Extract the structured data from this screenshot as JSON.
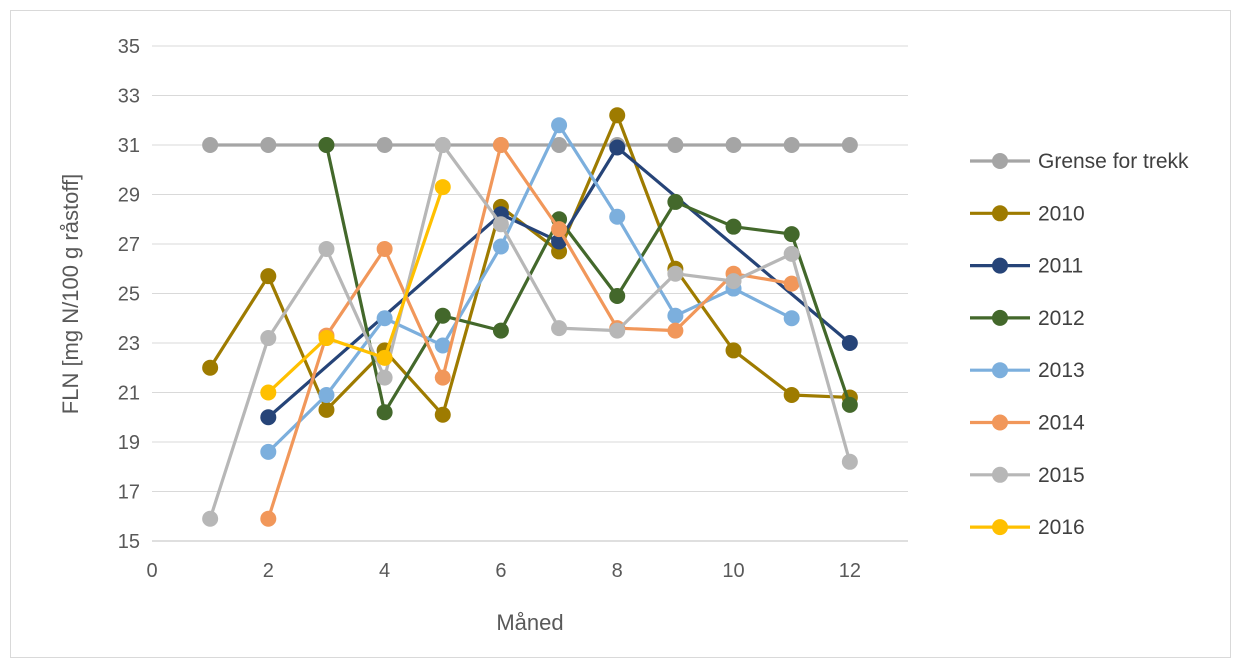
{
  "chart_data": {
    "type": "line",
    "title": "",
    "xlabel": "Måned",
    "ylabel": "FLN [mg N/100 g råstoff]",
    "xlim": [
      0,
      13
    ],
    "ylim": [
      15,
      35
    ],
    "xticks": [
      0,
      2,
      4,
      6,
      8,
      10,
      12
    ],
    "yticks": [
      15,
      17,
      19,
      21,
      23,
      25,
      27,
      29,
      31,
      33,
      35
    ],
    "grid": true,
    "legend_position": "right",
    "series": [
      {
        "name": "Grense for trekk",
        "color": "#a5a5a5",
        "x": [
          1,
          2,
          3,
          4,
          5,
          6,
          7,
          8,
          9,
          10,
          11,
          12
        ],
        "y": [
          31,
          31,
          31,
          31,
          31,
          31,
          31,
          31,
          31,
          31,
          31,
          31
        ]
      },
      {
        "name": "2010",
        "color": "#9e7b00",
        "x": [
          1,
          2,
          3,
          4,
          5,
          6,
          7,
          8,
          9,
          10,
          11,
          12
        ],
        "y": [
          22.0,
          25.7,
          20.3,
          22.7,
          20.1,
          28.5,
          26.7,
          32.2,
          26.0,
          22.7,
          20.9,
          20.8
        ]
      },
      {
        "name": "2011",
        "color": "#264478",
        "x": [
          2,
          6,
          7,
          8,
          12
        ],
        "y": [
          20.0,
          28.2,
          27.1,
          30.9,
          23.0
        ]
      },
      {
        "name": "2012",
        "color": "#43682b",
        "x": [
          3,
          4,
          5,
          6,
          7,
          8,
          9,
          10,
          11,
          12
        ],
        "y": [
          31.0,
          20.2,
          24.1,
          23.5,
          28.0,
          24.9,
          28.7,
          27.7,
          27.4,
          20.5
        ]
      },
      {
        "name": "2013",
        "color": "#7cafdd",
        "x": [
          2,
          3,
          4,
          5,
          6,
          7,
          8,
          9,
          10,
          11
        ],
        "y": [
          18.6,
          20.9,
          24.0,
          22.9,
          26.9,
          31.8,
          28.1,
          24.1,
          25.2,
          24.0
        ]
      },
      {
        "name": "2014",
        "color": "#f1975a",
        "x": [
          2,
          3,
          4,
          5,
          6,
          7,
          8,
          9,
          10,
          11
        ],
        "y": [
          15.9,
          23.3,
          26.8,
          21.6,
          31.0,
          27.6,
          23.6,
          23.5,
          25.8,
          25.4
        ]
      },
      {
        "name": "2015",
        "color": "#b7b7b7",
        "x": [
          1,
          2,
          3,
          4,
          5,
          6,
          7,
          8,
          9,
          10,
          11,
          12
        ],
        "y": [
          15.9,
          23.2,
          26.8,
          21.6,
          31.0,
          27.8,
          23.6,
          23.5,
          25.8,
          25.5,
          26.6,
          18.2
        ]
      },
      {
        "name": "2016",
        "color": "#ffc000",
        "x": [
          2,
          3,
          4,
          5
        ],
        "y": [
          21.0,
          23.2,
          22.4,
          29.3
        ]
      }
    ]
  }
}
